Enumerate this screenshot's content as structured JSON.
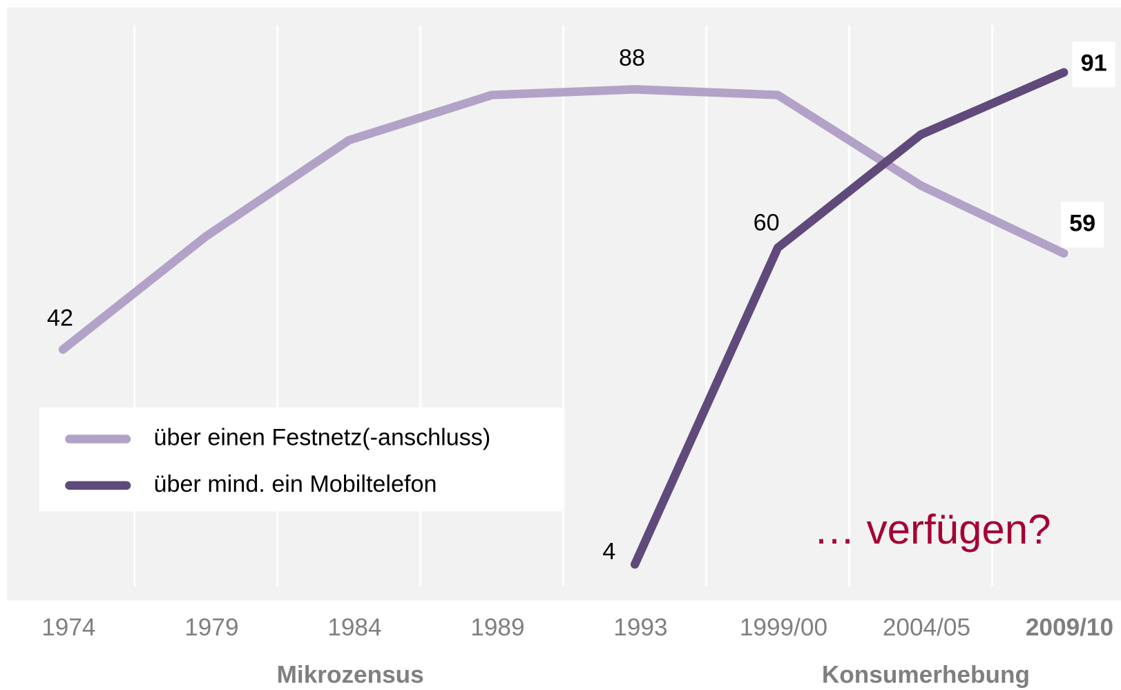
{
  "chart_data": {
    "type": "line",
    "categories": [
      "1974",
      "1979",
      "1984",
      "1989",
      "1993",
      "1999/00",
      "2004/05",
      "2009/10"
    ],
    "series": [
      {
        "name": "über einen Festnetz(-anschluss)",
        "color": "#b3a2c7",
        "values": [
          42,
          62,
          79,
          87,
          88,
          87,
          71,
          59
        ],
        "value_labels": [
          "42",
          null,
          null,
          null,
          "88",
          null,
          null,
          "59"
        ]
      },
      {
        "name": "über mind. ein Mobiltelefon",
        "color": "#604a7b",
        "values": [
          null,
          null,
          null,
          null,
          4,
          60,
          80,
          91
        ],
        "value_labels": [
          null,
          null,
          null,
          null,
          "4",
          "60",
          null,
          "91"
        ]
      }
    ],
    "ylim": [
      0,
      100
    ],
    "group_labels": [
      "Mikrozensus",
      "Konsumerhebung"
    ],
    "annotation": "… verfügen?",
    "annotation_color": "#a50034",
    "legend": "lower left"
  }
}
